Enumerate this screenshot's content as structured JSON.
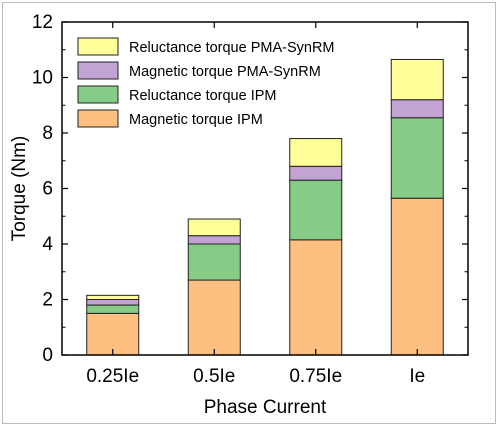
{
  "chart_data": {
    "type": "bar",
    "stacked": true,
    "categories": [
      "0.25Ie",
      "0.5Ie",
      "0.75Ie",
      "Ie"
    ],
    "series": [
      {
        "name": "Magnetic torque IPM",
        "color": "#ffbf80",
        "values": [
          1.5,
          2.7,
          4.15,
          5.65
        ]
      },
      {
        "name": "Reluctance torque IPM",
        "color": "#86cc86",
        "values": [
          0.3,
          1.3,
          2.15,
          2.9
        ]
      },
      {
        "name": "Magnetic torque PMA-SynRM",
        "color": "#c3a3d3",
        "values": [
          0.2,
          0.3,
          0.5,
          0.65
        ]
      },
      {
        "name": "Reluctance torque PMA-SynRM",
        "color": "#ffff99",
        "values": [
          0.15,
          0.6,
          1.0,
          1.45
        ]
      }
    ],
    "legend_order": [
      3,
      2,
      1,
      0
    ],
    "xlabel": "Phase Current",
    "ylabel": "Torque (Nm)",
    "ylim": [
      0,
      12
    ],
    "yticks": [
      "0",
      "2",
      "4",
      "6",
      "8",
      "10",
      "12"
    ],
    "grid": false,
    "legend_position": "top-left"
  }
}
